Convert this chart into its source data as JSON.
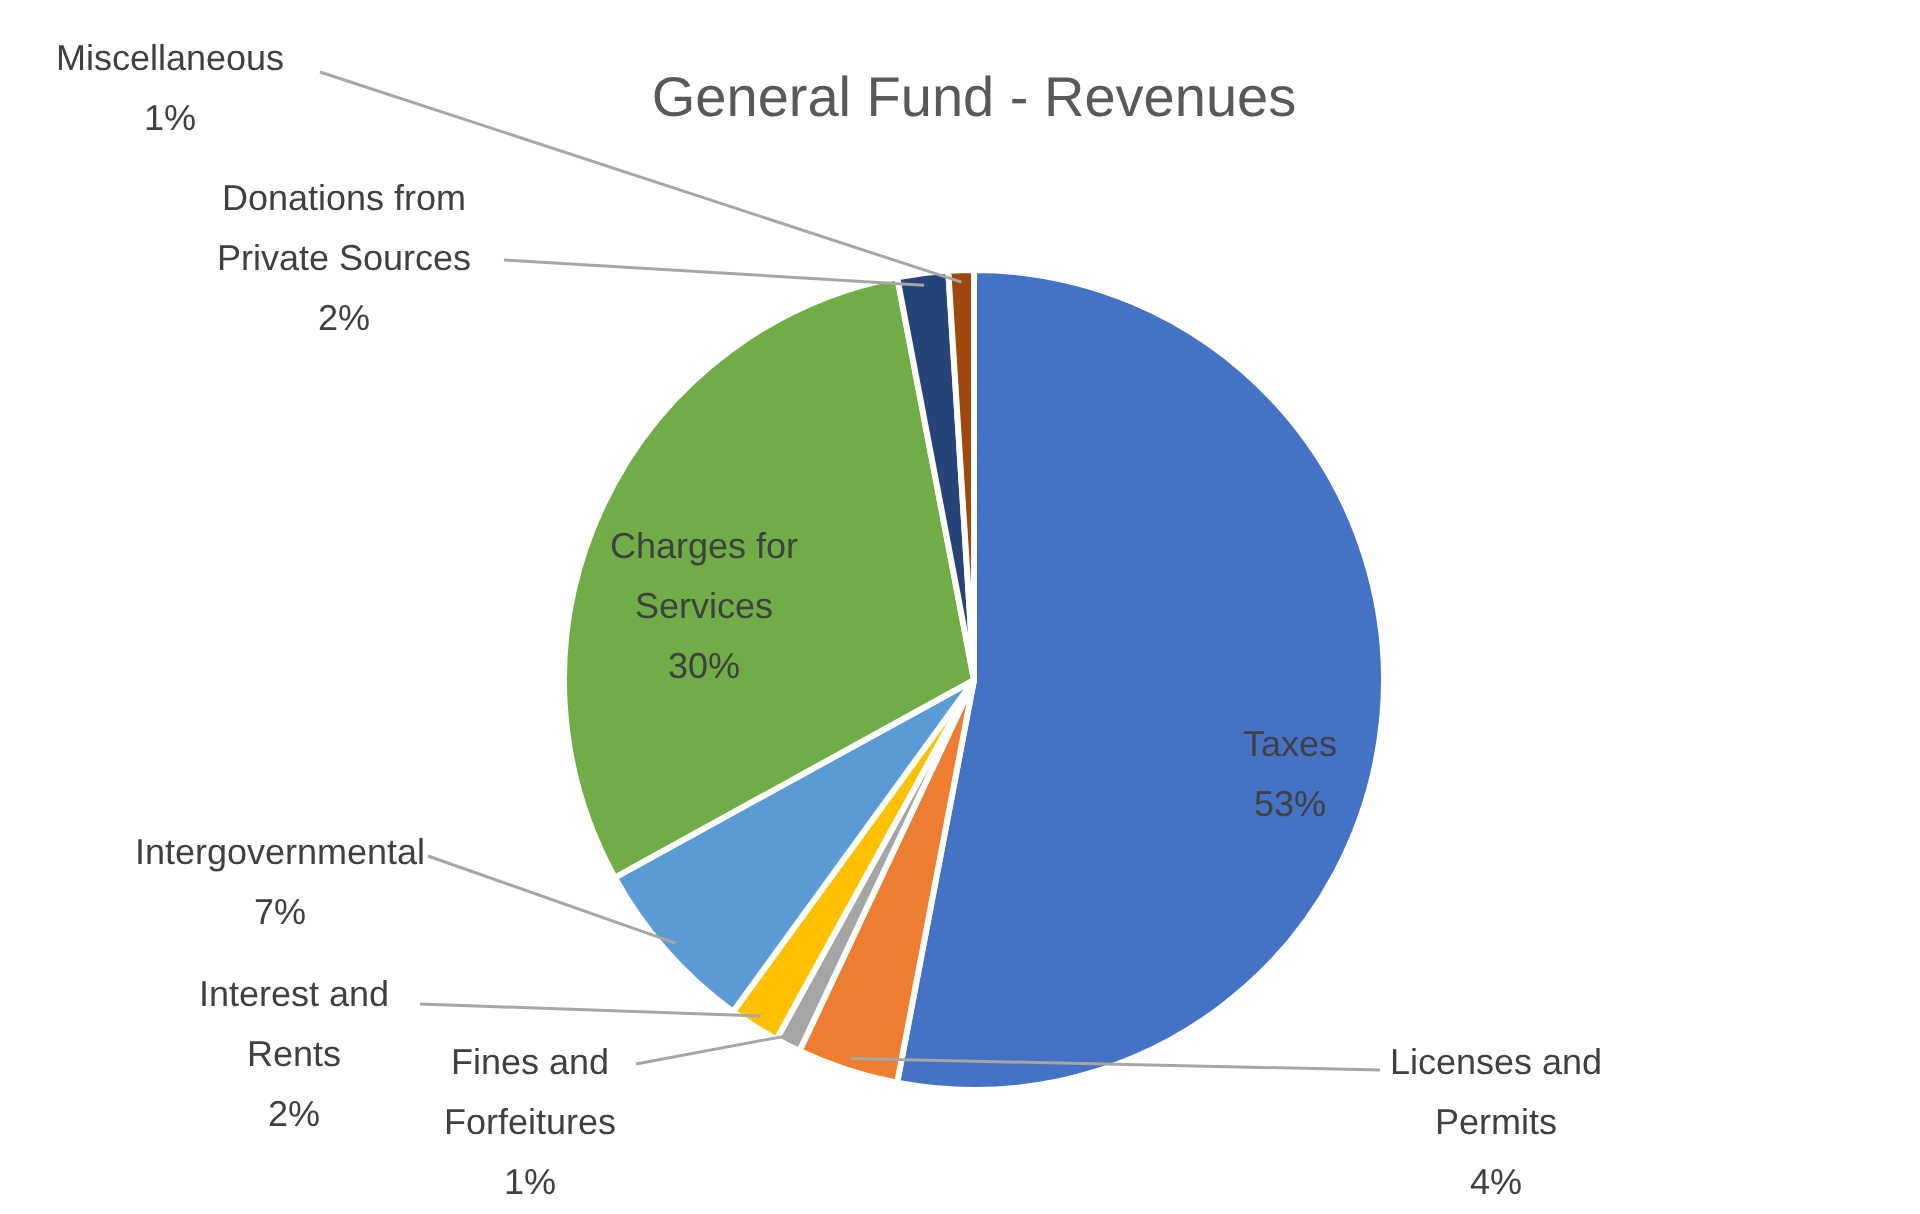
{
  "chart_data": {
    "type": "pie",
    "title": "General Fund - Revenues",
    "categories": [
      "Taxes",
      "Licenses and Permits",
      "Fines and Forfeitures",
      "Interest and Rents",
      "Intergovernmental",
      "Charges for Services",
      "Donations from Private Sources",
      "Miscellaneous"
    ],
    "values": [
      53,
      4,
      1,
      2,
      7,
      30,
      2,
      1
    ],
    "value_labels": [
      "53%",
      "4%",
      "1%",
      "2%",
      "7%",
      "30%",
      "2%",
      "1%"
    ],
    "colors": [
      "#4472c4",
      "#ed7d31",
      "#a5a5a5",
      "#ffc000",
      "#5b9bd5",
      "#70ad47",
      "#264478",
      "#9e480e"
    ]
  }
}
